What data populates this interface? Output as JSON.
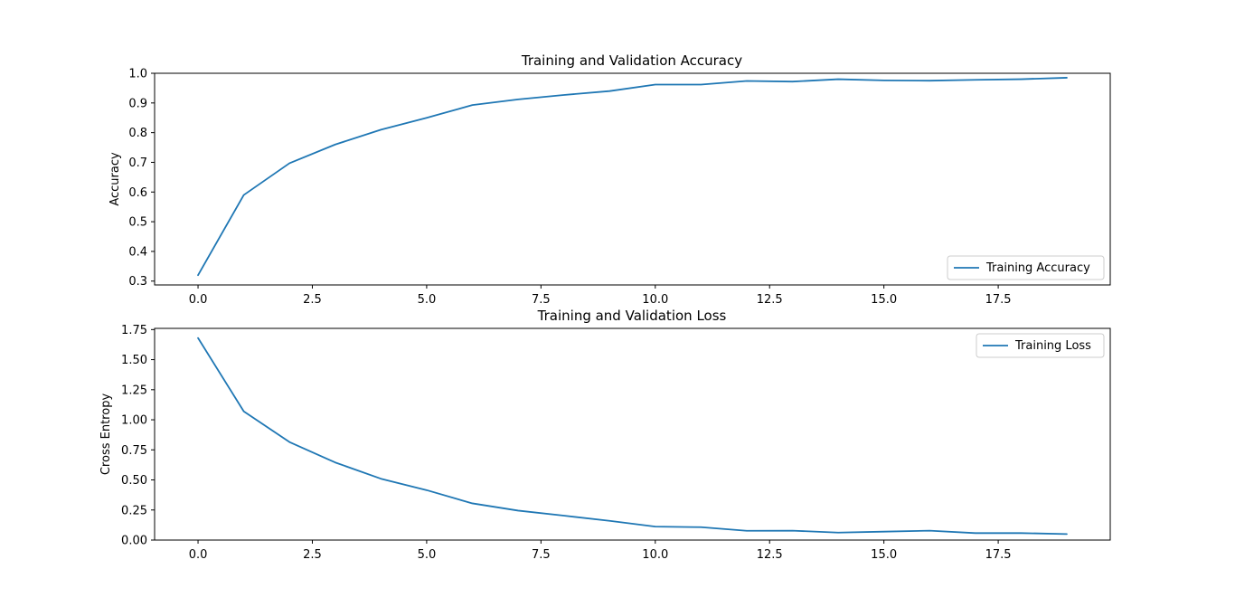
{
  "chart_data": [
    {
      "type": "line",
      "title": "Training and Validation Accuracy",
      "xlabel": "",
      "ylabel": "Accuracy",
      "xlim": [
        -0.95,
        19.95
      ],
      "ylim": [
        0.287,
        1.0
      ],
      "x_ticks": [
        0.0,
        2.5,
        5.0,
        7.5,
        10.0,
        12.5,
        15.0,
        17.5
      ],
      "x_tick_labels": [
        "0.0",
        "2.5",
        "5.0",
        "7.5",
        "10.0",
        "12.5",
        "15.0",
        "17.5"
      ],
      "y_ticks": [
        0.3,
        0.4,
        0.5,
        0.6,
        0.7,
        0.8,
        0.9,
        1.0
      ],
      "y_tick_labels": [
        "0.3",
        "0.4",
        "0.5",
        "0.6",
        "0.7",
        "0.8",
        "0.9",
        "1.0"
      ],
      "grid": false,
      "legend": "lower-right",
      "x": [
        0,
        1,
        2,
        3,
        4,
        5,
        6,
        7,
        8,
        9,
        10,
        11,
        12,
        13,
        14,
        15,
        16,
        17,
        18,
        19
      ],
      "series": [
        {
          "name": "Training Accuracy",
          "color": "#1f77b4",
          "values": [
            0.32,
            0.59,
            0.697,
            0.76,
            0.81,
            0.85,
            0.893,
            0.912,
            0.927,
            0.94,
            0.962,
            0.962,
            0.974,
            0.972,
            0.98,
            0.976,
            0.975,
            0.978,
            0.98,
            0.985
          ]
        }
      ]
    },
    {
      "type": "line",
      "title": "Training and Validation Loss",
      "xlabel": "",
      "ylabel": "Cross Entropy",
      "xlim": [
        -0.95,
        19.95
      ],
      "ylim": [
        0.0,
        1.76
      ],
      "x_ticks": [
        0.0,
        2.5,
        5.0,
        7.5,
        10.0,
        12.5,
        15.0,
        17.5
      ],
      "x_tick_labels": [
        "0.0",
        "2.5",
        "5.0",
        "7.5",
        "10.0",
        "12.5",
        "15.0",
        "17.5"
      ],
      "y_ticks": [
        0.0,
        0.25,
        0.5,
        0.75,
        1.0,
        1.25,
        1.5,
        1.75
      ],
      "y_tick_labels": [
        "0.00",
        "0.25",
        "0.50",
        "0.75",
        "1.00",
        "1.25",
        "1.50",
        "1.75"
      ],
      "grid": false,
      "legend": "upper-right",
      "x": [
        0,
        1,
        2,
        3,
        4,
        5,
        6,
        7,
        8,
        9,
        10,
        11,
        12,
        13,
        14,
        15,
        16,
        17,
        18,
        19
      ],
      "series": [
        {
          "name": "Training Loss",
          "color": "#1f77b4",
          "values": [
            1.68,
            1.07,
            0.815,
            0.645,
            0.51,
            0.415,
            0.305,
            0.245,
            0.203,
            0.16,
            0.112,
            0.107,
            0.077,
            0.078,
            0.062,
            0.07,
            0.078,
            0.058,
            0.058,
            0.05
          ]
        }
      ]
    }
  ]
}
